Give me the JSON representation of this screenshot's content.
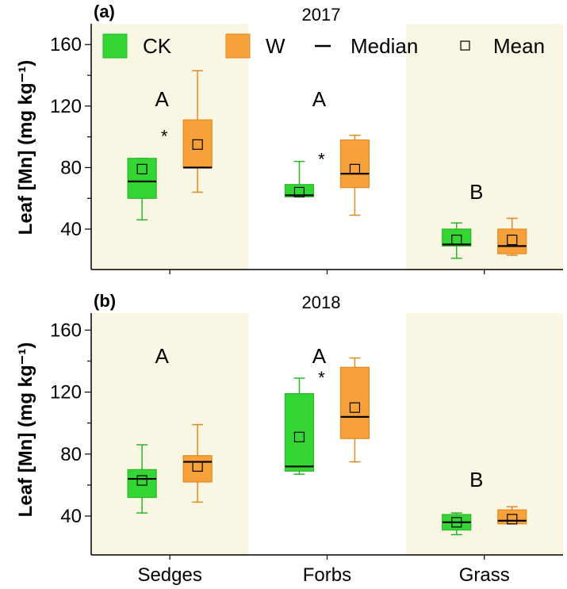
{
  "colors": {
    "ck": "#33d633",
    "ck_edge": "#2bb52b",
    "w": "#f7a13a",
    "w_edge": "#e08a22",
    "panel_shade": "#faf6e4",
    "median": "#000000"
  },
  "legend": {
    "items": [
      {
        "label": "CK",
        "kind": "box-ck"
      },
      {
        "label": "W",
        "kind": "box-w"
      },
      {
        "label": "Median",
        "kind": "median-line"
      },
      {
        "label": "Mean",
        "kind": "mean-square"
      }
    ]
  },
  "chart_data": [
    {
      "type": "box",
      "panel_label": "(a)",
      "title": "2017",
      "ylabel": "Leaf [Mn] (mg kg⁻¹)",
      "xlabel": "",
      "ylim": [
        20,
        170
      ],
      "y_ticks": [
        40,
        80,
        120,
        160
      ],
      "grid": false,
      "legend_position": "top",
      "categories": [
        "Sedges",
        "Forbs",
        "Grass"
      ],
      "shaded_categories": [
        "Sedges",
        "Grass"
      ],
      "group_letters": [
        "A",
        "A",
        "B"
      ],
      "significance_marks": [
        "*",
        "*",
        ""
      ],
      "series": [
        {
          "name": "CK",
          "boxes": [
            {
              "min": 46,
              "q1": 60,
              "median": 71,
              "q3": 86,
              "max": 86,
              "mean": 79
            },
            {
              "min": 61,
              "q1": 61,
              "median": 62,
              "q3": 69,
              "max": 84,
              "mean": 64
            },
            {
              "min": 21,
              "q1": 29,
              "median": 30,
              "q3": 40,
              "max": 44,
              "mean": 33
            }
          ]
        },
        {
          "name": "W",
          "boxes": [
            {
              "min": 64,
              "q1": 80,
              "median": 80,
              "q3": 111,
              "max": 143,
              "mean": 95
            },
            {
              "min": 49,
              "q1": 67,
              "median": 76,
              "q3": 98,
              "max": 101,
              "mean": 79
            },
            {
              "min": 23,
              "q1": 24,
              "median": 29,
              "q3": 40,
              "max": 47,
              "mean": 33
            }
          ]
        }
      ]
    },
    {
      "type": "box",
      "panel_label": "(b)",
      "title": "2018",
      "ylabel": "Leaf [Mn] (mg kg⁻¹)",
      "xlabel": "",
      "ylim": [
        20,
        170
      ],
      "y_ticks": [
        40,
        80,
        120,
        160
      ],
      "grid": false,
      "categories": [
        "Sedges",
        "Forbs",
        "Grass"
      ],
      "shaded_categories": [
        "Sedges",
        "Grass"
      ],
      "group_letters": [
        "A",
        "A",
        "B"
      ],
      "significance_marks": [
        "",
        "*",
        ""
      ],
      "series": [
        {
          "name": "CK",
          "boxes": [
            {
              "min": 42,
              "q1": 52,
              "median": 64,
              "q3": 70,
              "max": 86,
              "mean": 63
            },
            {
              "min": 67,
              "q1": 69,
              "median": 72,
              "q3": 119,
              "max": 129,
              "mean": 91
            },
            {
              "min": 28,
              "q1": 31,
              "median": 36,
              "q3": 41,
              "max": 42,
              "mean": 36
            }
          ]
        },
        {
          "name": "W",
          "boxes": [
            {
              "min": 49,
              "q1": 62,
              "median": 75,
              "q3": 79,
              "max": 99,
              "mean": 72
            },
            {
              "min": 75,
              "q1": 90,
              "median": 104,
              "q3": 136,
              "max": 142,
              "mean": 110
            },
            {
              "min": 35,
              "q1": 35,
              "median": 37,
              "q3": 44,
              "max": 46,
              "mean": 38
            }
          ]
        }
      ]
    }
  ]
}
